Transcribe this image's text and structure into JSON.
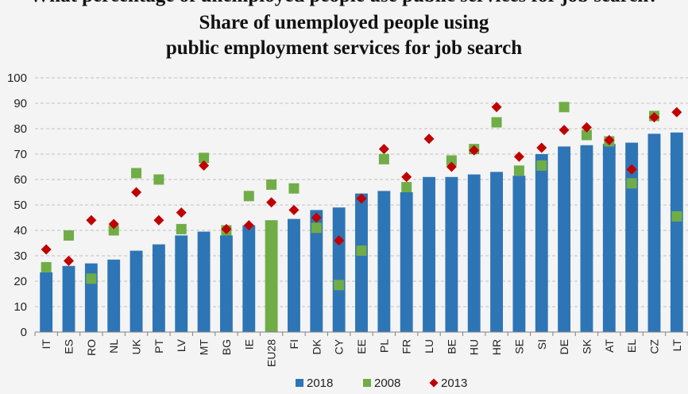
{
  "page": {
    "heading_fragment": "What percentage of unemployed people use public services for job search?",
    "title_line_1": "Share of unemployed people using",
    "title_line_2": "public employment services for job search"
  },
  "chart_data": {
    "type": "bar",
    "title": "Share of unemployed people using public employment services for job search",
    "ylim": [
      0,
      100
    ],
    "yticks": [
      0,
      10,
      20,
      30,
      40,
      50,
      60,
      70,
      80,
      90,
      100
    ],
    "grid": "horizontal dashed",
    "legend_position": "bottom",
    "categories": [
      "IT",
      "ES",
      "RO",
      "NL",
      "UK",
      "PT",
      "LV",
      "MT",
      "BG",
      "IE",
      "EU28",
      "FI",
      "DK",
      "CY",
      "EE",
      "PL",
      "FR",
      "LU",
      "BE",
      "HU",
      "HR",
      "SE",
      "SI",
      "DE",
      "SK",
      "AT",
      "EL",
      "CZ",
      "LT"
    ],
    "bar_series": {
      "name": "2018",
      "color": "#2e75b6",
      "highlight_color": "#70ad47",
      "highlight_category": "EU28",
      "values": [
        23.5,
        26,
        27,
        28.5,
        32,
        34.5,
        38,
        39.5,
        38,
        42,
        44,
        44.5,
        48,
        49,
        54.5,
        55.5,
        55,
        61,
        61,
        62,
        63,
        61.5,
        70,
        73,
        73.5,
        74,
        74.5,
        78,
        78.5
      ]
    },
    "marker_series": [
      {
        "name": "2008",
        "color": "#70ad47",
        "marker": "square",
        "values": [
          25.5,
          38,
          21,
          40,
          62.5,
          60,
          40.5,
          68.5,
          40,
          53.5,
          58,
          56.5,
          41,
          18.5,
          32,
          68,
          57,
          null,
          67.5,
          72,
          82.5,
          63.5,
          65.5,
          88.5,
          77.5,
          75,
          58.5,
          85,
          45.5
        ]
      },
      {
        "name": "2013",
        "color": "#c00000",
        "marker": "diamond",
        "values": [
          32.5,
          28,
          44,
          42.5,
          55,
          44,
          47,
          65.5,
          40.5,
          42,
          51,
          48,
          45,
          36,
          52.5,
          72,
          61,
          76,
          65,
          71.5,
          88.5,
          69,
          72.5,
          79.5,
          80.5,
          75.5,
          64,
          84.5,
          86.5
        ]
      }
    ]
  }
}
